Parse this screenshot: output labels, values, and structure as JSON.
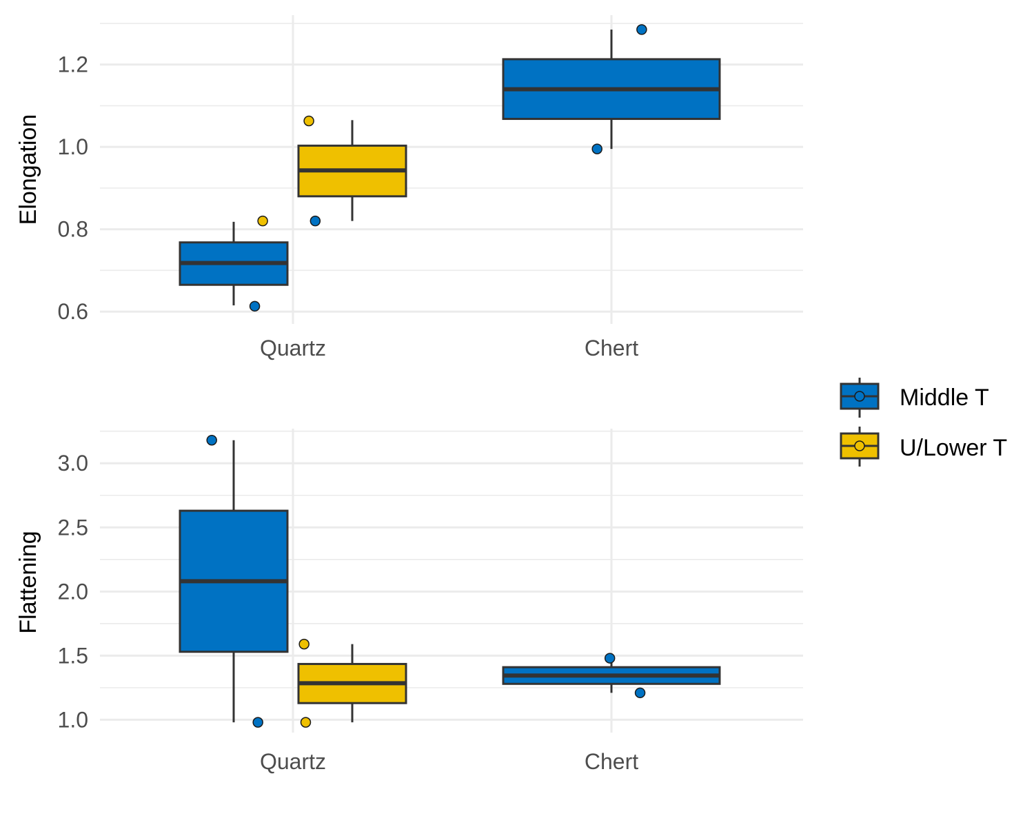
{
  "chart_data": [
    {
      "type": "box",
      "ylabel": "Elongation",
      "categories": [
        "Quartz",
        "Chert"
      ],
      "ylim": [
        0.57,
        1.32
      ],
      "yticks": [
        0.6,
        0.8,
        1.0,
        1.2
      ],
      "ytick_labels": [
        "0.6",
        "0.8",
        "1.0",
        "1.2"
      ],
      "boxes": [
        {
          "category": "Quartz",
          "series": "Middle T",
          "whisker_low": 0.615,
          "q1": 0.665,
          "median": 0.718,
          "q3": 0.768,
          "whisker_high": 0.818
        },
        {
          "category": "Quartz",
          "series": "U/Lower T",
          "whisker_low": 0.82,
          "q1": 0.88,
          "median": 0.943,
          "q3": 1.003,
          "whisker_high": 1.065
        },
        {
          "category": "Chert",
          "series": "Middle T",
          "whisker_low": 0.995,
          "q1": 1.068,
          "median": 1.14,
          "q3": 1.213,
          "whisker_high": 1.285
        }
      ],
      "points": [
        {
          "category": "Quartz",
          "series": "Middle T",
          "y": 0.613,
          "jitter": -0.12
        },
        {
          "category": "Quartz",
          "series": "Middle T",
          "y": 0.82,
          "jitter": 0.07
        },
        {
          "category": "Quartz",
          "series": "U/Lower T",
          "y": 0.82,
          "jitter": -0.095
        },
        {
          "category": "Quartz",
          "series": "U/Lower T",
          "y": 1.063,
          "jitter": 0.05
        },
        {
          "category": "Chert",
          "series": "Middle T",
          "y": 0.995,
          "jitter": -0.045
        },
        {
          "category": "Chert",
          "series": "Middle T",
          "y": 1.285,
          "jitter": 0.095
        }
      ]
    },
    {
      "type": "box",
      "ylabel": "Flattening",
      "categories": [
        "Quartz",
        "Chert"
      ],
      "ylim": [
        0.9,
        3.27
      ],
      "yticks": [
        1.0,
        1.5,
        2.0,
        2.5,
        3.0
      ],
      "ytick_labels": [
        "1.0",
        "1.5",
        "2.0",
        "2.5",
        "3.0"
      ],
      "boxes": [
        {
          "category": "Quartz",
          "series": "Middle T",
          "whisker_low": 0.98,
          "q1": 1.53,
          "median": 2.08,
          "q3": 2.63,
          "whisker_high": 3.18
        },
        {
          "category": "Quartz",
          "series": "U/Lower T",
          "whisker_low": 0.98,
          "q1": 1.13,
          "median": 1.285,
          "q3": 1.435,
          "whisker_high": 1.59
        },
        {
          "category": "Chert",
          "series": "Middle T",
          "whisker_low": 1.21,
          "q1": 1.28,
          "median": 1.345,
          "q3": 1.41,
          "whisker_high": 1.48
        }
      ],
      "points": [
        {
          "category": "Quartz",
          "series": "Middle T",
          "y": 3.18,
          "jitter": -0.255
        },
        {
          "category": "Quartz",
          "series": "Middle T",
          "y": 0.98,
          "jitter": -0.11
        },
        {
          "category": "Quartz",
          "series": "U/Lower T",
          "y": 1.59,
          "jitter": 0.035
        },
        {
          "category": "Quartz",
          "series": "U/Lower T",
          "y": 0.98,
          "jitter": 0.04
        },
        {
          "category": "Chert",
          "series": "Middle T",
          "y": 1.48,
          "jitter": -0.005
        },
        {
          "category": "Chert",
          "series": "Middle T",
          "y": 1.21,
          "jitter": 0.09
        }
      ]
    }
  ],
  "legend": {
    "position": "right",
    "items": [
      {
        "label": "Middle T",
        "color": "#0072c3"
      },
      {
        "label": "U/Lower T",
        "color": "#efc000"
      }
    ]
  },
  "colors": {
    "Middle T": "#0072c3",
    "U/Lower T": "#efc000",
    "outline": "#333333",
    "grid": "#ebebeb"
  }
}
